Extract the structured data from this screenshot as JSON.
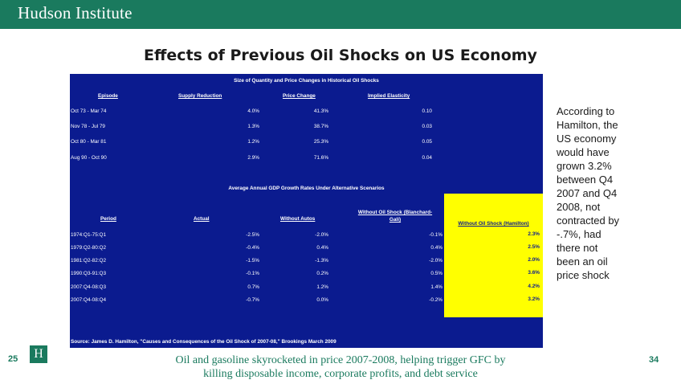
{
  "header": {
    "brand": "Hudson Institute"
  },
  "slide": {
    "title": "Effects of Previous Oil Shocks on US Economy"
  },
  "table1": {
    "title": "Size of Quantity and Price Changes in Historical Oil Shocks",
    "columns": [
      "Episode",
      "Supply Reduction",
      "Price Change",
      "Implied Elasticity"
    ],
    "rows": [
      [
        "Oct 73 - Mar 74",
        "4.0%",
        "41.3%",
        "0.10"
      ],
      [
        "Nov 78 - Jul 79",
        "1.3%",
        "38.7%",
        "0.03"
      ],
      [
        "Oct 80 - Mar 81",
        "1.2%",
        "25.3%",
        "0.05"
      ],
      [
        "Aug 90 - Oct 90",
        "2.9%",
        "71.6%",
        "0.04"
      ]
    ]
  },
  "table2": {
    "title": "Average Annual GDP Growth Rates Under Alternative Scenarios",
    "columns": [
      "Period",
      "Actual",
      "Without Autos",
      "Without Oil Shock (Blanchard-Gali)",
      "Without Oil Shock (Hamilton)"
    ],
    "rows": [
      [
        "1974:Q1-75:Q1",
        "-2.5%",
        "-2.0%",
        "-0.1%",
        "2.3%"
      ],
      [
        "1979:Q2-80:Q2",
        "-0.4%",
        "0.4%",
        "0.4%",
        "2.5%"
      ],
      [
        "1981:Q2-82:Q2",
        "-1.5%",
        "-1.3%",
        "-2.0%",
        "2.0%"
      ],
      [
        "1990:Q3-91:Q3",
        "-0.1%",
        "0.2%",
        "0.5%",
        "3.6%"
      ],
      [
        "2007:Q4-08:Q3",
        "0.7%",
        "1.2%",
        "1.4%",
        "4.2%"
      ],
      [
        "2007:Q4-08:Q4",
        "-0.7%",
        "0.0%",
        "-0.2%",
        "3.2%"
      ]
    ]
  },
  "source": "Source: James D. Hamilton, \"Causes and Consequences of the Oil Shock of 2007-08,\" Brookings March 2009",
  "side_text": [
    "According to",
    "Hamilton, the",
    "US economy",
    "would have",
    "grown 3.2%",
    "between Q4",
    "2007 and Q4",
    "2008, not",
    "contracted by",
    "-.7%, had",
    "there not",
    "been an oil",
    "price shock"
  ],
  "footer": {
    "slide_number": "25",
    "logo_letter": "H",
    "caption_line1": "Oil and gasoline skyrocketed in price 2007-2008,  helping trigger GFC by",
    "caption_line2": "killing disposable income, corporate profits, and debt service",
    "page_number": "34"
  },
  "colors": {
    "brand_green": "#1a7a5e",
    "panel_blue": "#0b1b8f",
    "highlight_yellow": "#ffff00"
  }
}
